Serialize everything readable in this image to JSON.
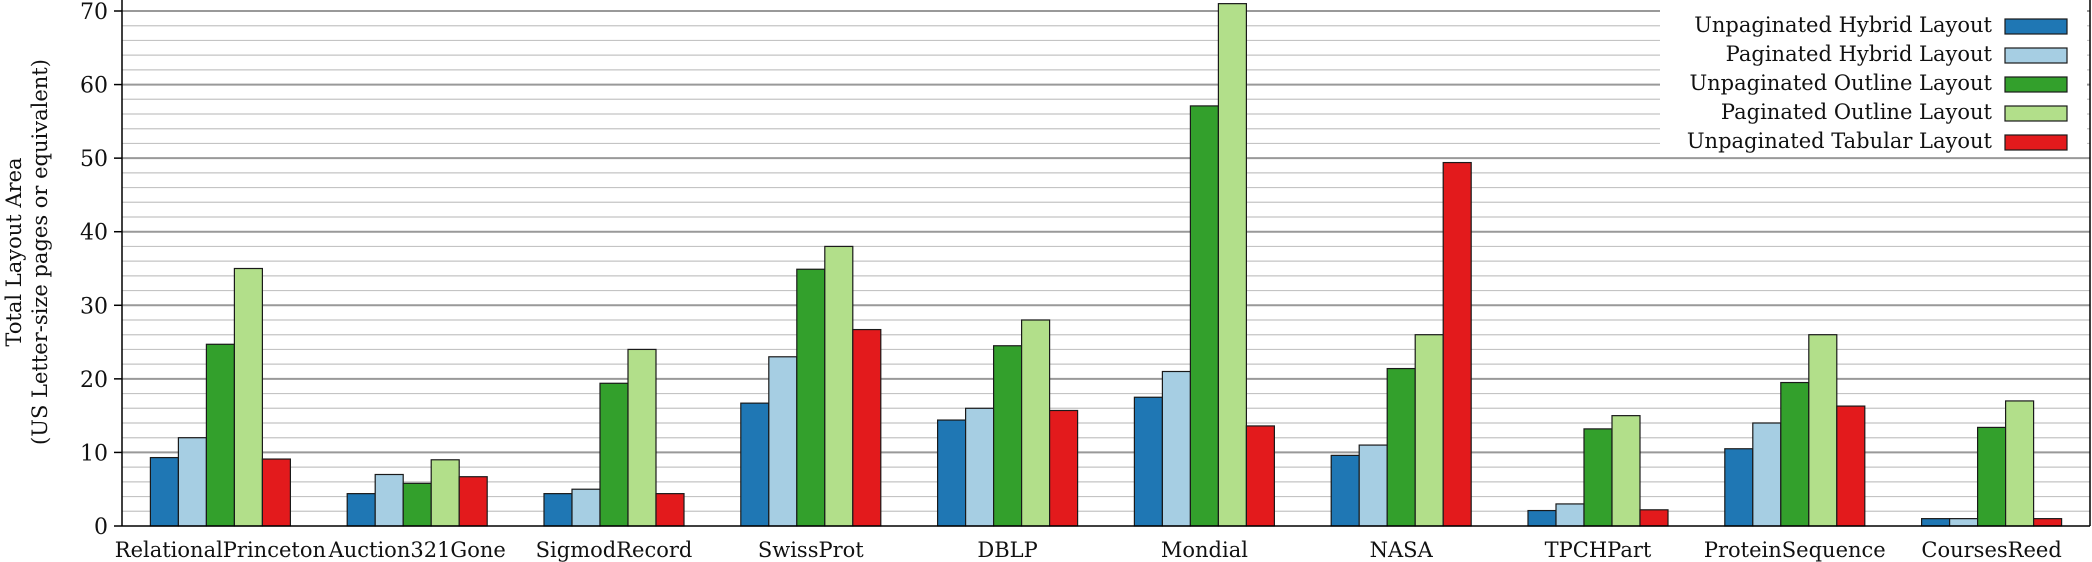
{
  "chart_data": {
    "type": "bar",
    "ylabel_line1": "Total Layout Area",
    "ylabel_line2": "(US Letter-size pages or equivalent)",
    "ylim": [
      0,
      70
    ],
    "yticks": [
      "0",
      "10",
      "20",
      "30",
      "40",
      "50",
      "60",
      "70"
    ],
    "ytick_values": [
      0,
      10,
      20,
      30,
      40,
      50,
      60,
      70
    ],
    "minor_grid_step": 2,
    "grid": true,
    "legend_position": "top-right",
    "categories": [
      "RelationalPrinceton",
      "Auction321Gone",
      "SigmodRecord",
      "SwissProt",
      "DBLP",
      "Mondial",
      "NASA",
      "TPCHPart",
      "ProteinSequence",
      "CoursesReed"
    ],
    "series": [
      {
        "name": "Unpaginated Hybrid Layout",
        "color": "#1f77b4",
        "values": [
          9.3,
          4.4,
          4.4,
          16.7,
          14.4,
          17.5,
          9.6,
          2.1,
          10.5,
          1.0
        ]
      },
      {
        "name": "Paginated Hybrid Layout",
        "color": "#a6cee3",
        "values": [
          12.0,
          7.0,
          5.0,
          23.0,
          16.0,
          21.0,
          11.0,
          3.0,
          14.0,
          1.0
        ]
      },
      {
        "name": "Unpaginated Outline Layout",
        "color": "#33a02c",
        "values": [
          24.7,
          5.8,
          19.4,
          34.9,
          24.5,
          57.1,
          21.4,
          13.2,
          19.5,
          13.4
        ]
      },
      {
        "name": "Paginated Outline Layout",
        "color": "#b2df8a",
        "values": [
          35.0,
          9.0,
          24.0,
          38.0,
          28.0,
          71.0,
          26.0,
          15.0,
          26.0,
          17.0
        ]
      },
      {
        "name": "Unpaginated Tabular Layout",
        "color": "#e31a1c",
        "values": [
          9.1,
          6.7,
          4.4,
          26.7,
          15.7,
          13.6,
          49.4,
          2.2,
          16.3,
          1.0
        ]
      }
    ]
  }
}
